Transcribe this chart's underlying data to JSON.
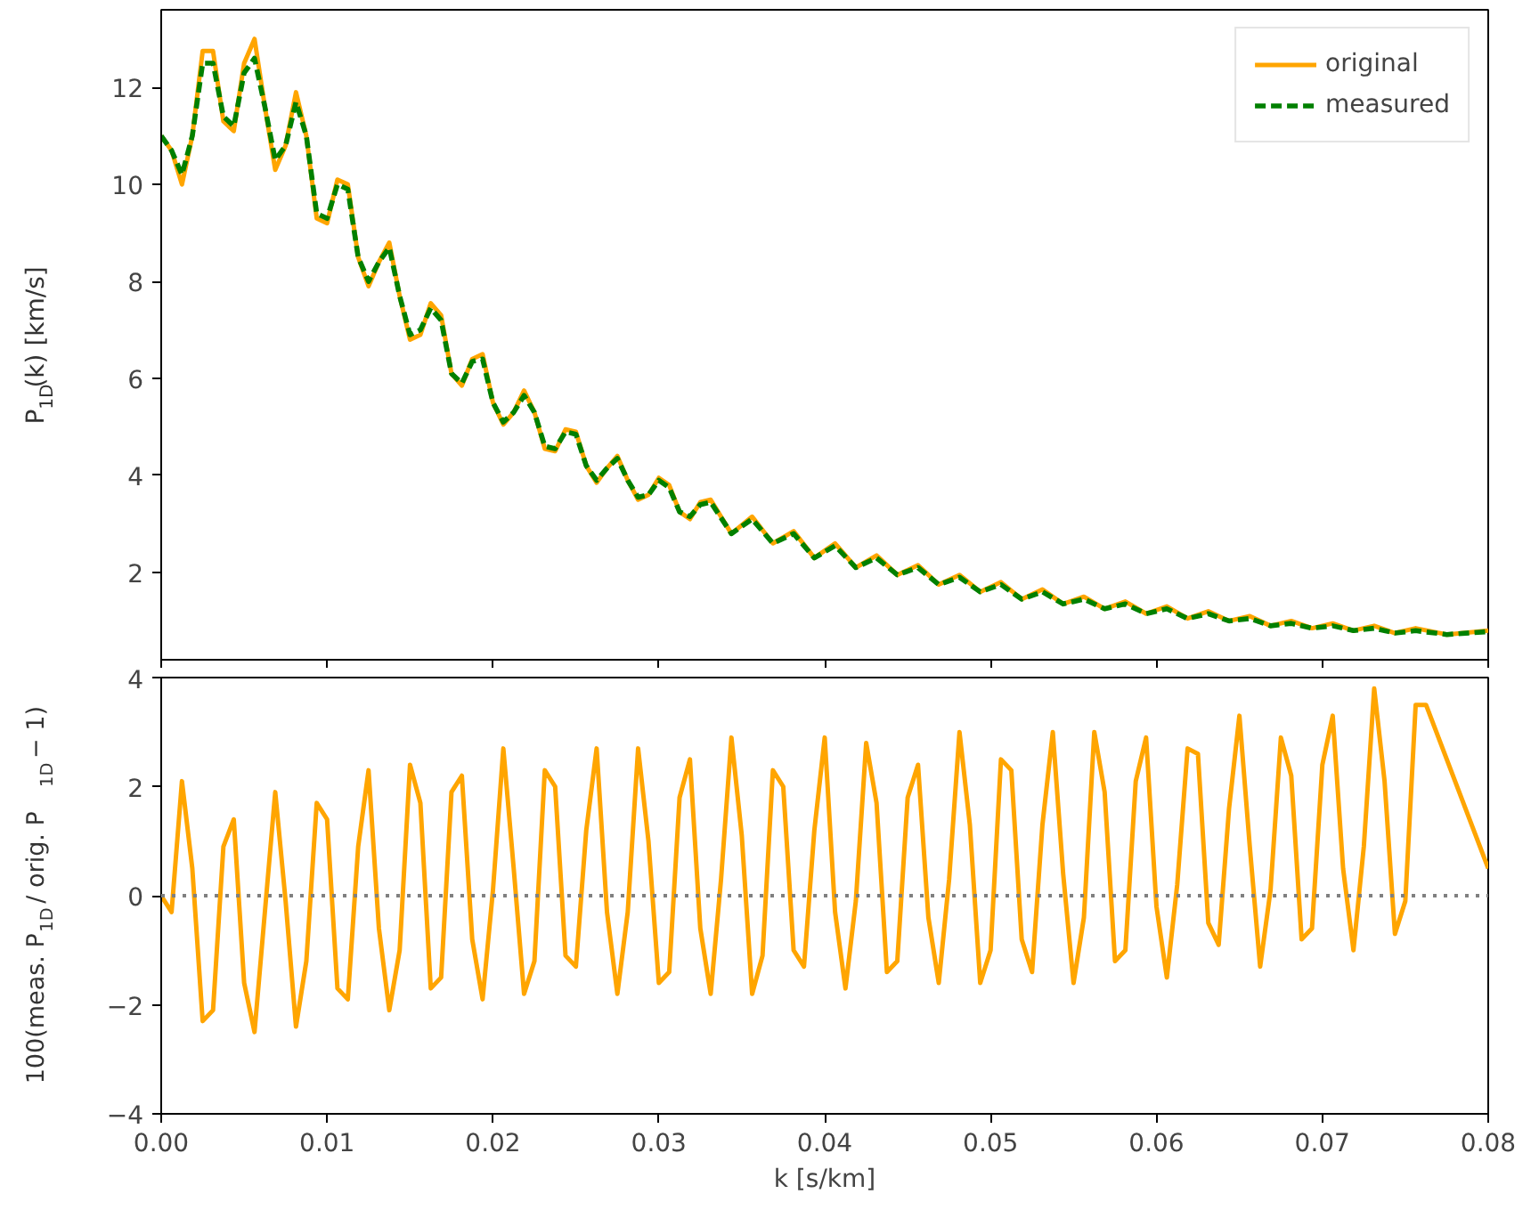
{
  "chart_data": [
    {
      "type": "line",
      "ylabel": "P$_{1D}$(k) [km/s]",
      "xlim": [
        0,
        0.08
      ],
      "ylim": [
        0.2,
        13.6
      ],
      "yticks": [
        2,
        4,
        6,
        8,
        10,
        12
      ],
      "xticks": [
        0,
        0.01,
        0.02,
        0.03,
        0.04,
        0.05,
        0.06,
        0.07,
        0.08
      ],
      "tick_labels": "y",
      "legend": "top right",
      "grid": false,
      "x": [
        0,
        0.000625,
        0.00125,
        0.001875,
        0.0025,
        0.003125,
        0.00375,
        0.004375,
        0.005,
        0.005625,
        0.00625,
        0.006875,
        0.0075,
        0.008125,
        0.00875,
        0.009375,
        0.01,
        0.010625,
        0.01125,
        0.011875,
        0.0125,
        0.013125,
        0.01375,
        0.014375,
        0.015,
        0.015625,
        0.01625,
        0.016875,
        0.0175,
        0.018125,
        0.01875,
        0.019375,
        0.02,
        0.020625,
        0.02125,
        0.021875,
        0.0225,
        0.023125,
        0.02375,
        0.024375,
        0.025,
        0.025625,
        0.02625,
        0.026875,
        0.0275,
        0.028125,
        0.02875,
        0.029375,
        0.03,
        0.030625,
        0.03125,
        0.031875,
        0.0325,
        0.033125,
        0.034375,
        0.035625,
        0.036875,
        0.038125,
        0.039375,
        0.040625,
        0.041875,
        0.043125,
        0.044375,
        0.045625,
        0.046875,
        0.048125,
        0.049375,
        0.050625,
        0.051875,
        0.053125,
        0.054375,
        0.055625,
        0.056875,
        0.058125,
        0.059375,
        0.060625,
        0.061875,
        0.063125,
        0.064375,
        0.065625,
        0.066875,
        0.068125,
        0.069375,
        0.070625,
        0.071875,
        0.073125,
        0.074375,
        0.075625,
        0.0775,
        0.08
      ],
      "series": [
        {
          "name": "original",
          "color": "#ffa500",
          "line_style": "solid",
          "values": [
            11.0,
            10.7,
            10.0,
            11.0,
            12.75,
            12.75,
            11.3,
            11.1,
            12.5,
            13.0,
            11.6,
            10.3,
            10.8,
            11.9,
            11.0,
            9.3,
            9.2,
            10.1,
            10.0,
            8.5,
            7.9,
            8.4,
            8.8,
            7.7,
            6.8,
            6.9,
            7.55,
            7.3,
            6.1,
            5.85,
            6.4,
            6.5,
            5.5,
            5.05,
            5.3,
            5.75,
            5.3,
            4.55,
            4.5,
            4.95,
            4.9,
            4.2,
            3.85,
            4.15,
            4.4,
            3.9,
            3.5,
            3.6,
            3.95,
            3.8,
            3.25,
            3.1,
            3.45,
            3.5,
            2.8,
            3.15,
            2.6,
            2.85,
            2.3,
            2.6,
            2.1,
            2.35,
            1.95,
            2.15,
            1.75,
            1.95,
            1.6,
            1.8,
            1.45,
            1.65,
            1.35,
            1.5,
            1.25,
            1.4,
            1.15,
            1.3,
            1.05,
            1.2,
            1.0,
            1.1,
            0.9,
            1.0,
            0.85,
            0.95,
            0.8,
            0.9,
            0.75,
            0.85,
            0.72,
            0.8
          ]
        },
        {
          "name": "measured",
          "color": "#008000",
          "line_style": "dashed",
          "values": [
            11.0,
            10.7,
            10.2,
            11.0,
            12.5,
            12.5,
            11.4,
            11.2,
            12.3,
            12.6,
            11.6,
            10.5,
            10.8,
            11.7,
            11.0,
            9.4,
            9.3,
            10.0,
            9.9,
            8.5,
            8.0,
            8.4,
            8.7,
            7.7,
            6.9,
            7.0,
            7.45,
            7.2,
            6.1,
            5.9,
            6.35,
            6.4,
            5.5,
            5.1,
            5.3,
            5.65,
            5.3,
            4.6,
            4.55,
            4.9,
            4.85,
            4.2,
            3.9,
            4.15,
            4.35,
            3.9,
            3.55,
            3.6,
            3.9,
            3.75,
            3.25,
            3.15,
            3.4,
            3.45,
            2.8,
            3.1,
            2.6,
            2.8,
            2.3,
            2.55,
            2.1,
            2.3,
            1.95,
            2.1,
            1.75,
            1.9,
            1.6,
            1.75,
            1.45,
            1.6,
            1.35,
            1.45,
            1.25,
            1.35,
            1.15,
            1.25,
            1.05,
            1.15,
            1.0,
            1.05,
            0.9,
            0.95,
            0.85,
            0.9,
            0.8,
            0.85,
            0.75,
            0.8,
            0.72,
            0.78
          ]
        }
      ]
    },
    {
      "type": "line",
      "xlabel": "k [s/km]",
      "ylabel": "100(meas. P$_{1D}$ / orig. P$_{1D}$ − 1)",
      "xlim": [
        0,
        0.08
      ],
      "ylim": [
        -4,
        4
      ],
      "yticks": [
        -4,
        -2,
        0,
        2,
        4
      ],
      "xticks": [
        {
          "value": 0,
          "label": "0.00"
        },
        {
          "value": 0.01,
          "label": "0.01"
        },
        {
          "value": 0.02,
          "label": "0.02"
        },
        {
          "value": 0.03,
          "label": "0.03"
        },
        {
          "value": 0.04,
          "label": "0.04"
        },
        {
          "value": 0.05,
          "label": "0.05"
        },
        {
          "value": 0.06,
          "label": "0.06"
        },
        {
          "value": 0.07,
          "label": "0.07"
        },
        {
          "value": 0.08,
          "label": "0.08"
        }
      ],
      "grid": false,
      "ref_lines": [
        {
          "axis": "y",
          "value": 0,
          "label": null,
          "color": "#808080",
          "line_style": "dotted"
        }
      ],
      "x": [
        0,
        0.000625,
        0.00125,
        0.001875,
        0.0025,
        0.003125,
        0.00375,
        0.004375,
        0.005,
        0.005625,
        0.00625,
        0.006875,
        0.0075,
        0.008125,
        0.00875,
        0.009375,
        0.01,
        0.010625,
        0.01125,
        0.011875,
        0.0125,
        0.013125,
        0.01375,
        0.014375,
        0.015,
        0.015625,
        0.01625,
        0.016875,
        0.0175,
        0.018125,
        0.01875,
        0.019375,
        0.02,
        0.020625,
        0.02125,
        0.021875,
        0.0225,
        0.023125,
        0.02375,
        0.024375,
        0.025,
        0.025625,
        0.02625,
        0.026875,
        0.0275,
        0.028125,
        0.02875,
        0.029375,
        0.03,
        0.030625,
        0.03125,
        0.031875,
        0.0325,
        0.033125,
        0.03375,
        0.034375,
        0.035,
        0.035625,
        0.03625,
        0.036875,
        0.0375,
        0.038125,
        0.03875,
        0.039375,
        0.04,
        0.040625,
        0.04125,
        0.041875,
        0.0425,
        0.043125,
        0.04375,
        0.044375,
        0.045,
        0.045625,
        0.04625,
        0.046875,
        0.0475,
        0.048125,
        0.04875,
        0.049375,
        0.05,
        0.050625,
        0.05125,
        0.051875,
        0.0525,
        0.053125,
        0.05375,
        0.054375,
        0.055,
        0.055625,
        0.05625,
        0.056875,
        0.0575,
        0.058125,
        0.05875,
        0.059375,
        0.06,
        0.060625,
        0.06125,
        0.061875,
        0.0625,
        0.063125,
        0.06375,
        0.064375,
        0.065,
        0.065625,
        0.06625,
        0.066875,
        0.0675,
        0.068125,
        0.06875,
        0.069375,
        0.07,
        0.070625,
        0.07125,
        0.071875,
        0.0725,
        0.073125,
        0.07375,
        0.074375,
        0.075,
        0.075625,
        0.07625,
        0.08
      ],
      "series": [
        {
          "color": "#ffa500",
          "line_style": "solid",
          "values": [
            0,
            -0.3,
            2.1,
            0.5,
            -2.3,
            -2.1,
            0.9,
            1.4,
            -1.6,
            -2.5,
            -0.3,
            1.9,
            -0.1,
            -2.4,
            -1.2,
            1.7,
            1.4,
            -1.7,
            -1.9,
            0.9,
            2.3,
            -0.6,
            -2.1,
            -1.0,
            2.4,
            1.7,
            -1.7,
            -1.5,
            1.9,
            2.2,
            -0.8,
            -1.9,
            0.1,
            2.7,
            0.5,
            -1.8,
            -1.2,
            2.3,
            2.0,
            -1.1,
            -1.3,
            1.2,
            2.7,
            -0.3,
            -1.8,
            -0.3,
            2.7,
            1.0,
            -1.6,
            -1.4,
            1.8,
            2.5,
            -0.6,
            -1.8,
            0.3,
            2.9,
            1.1,
            -1.8,
            -1.1,
            2.3,
            2.0,
            -1.0,
            -1.3,
            1.2,
            2.9,
            -0.3,
            -1.7,
            -0.1,
            2.8,
            1.7,
            -1.4,
            -1.2,
            1.8,
            2.4,
            -0.4,
            -1.6,
            0.3,
            3.0,
            1.3,
            -1.6,
            -1.0,
            2.5,
            2.3,
            -0.8,
            -1.4,
            1.3,
            3.0,
            0.4,
            -1.6,
            -0.4,
            3.0,
            1.9,
            -1.2,
            -1.0,
            2.1,
            2.9,
            -0.2,
            -1.5,
            0.2,
            2.7,
            2.6,
            -0.5,
            -0.9,
            1.6,
            3.3,
            0.9,
            -1.3,
            0.1,
            2.9,
            2.2,
            -0.8,
            -0.6,
            2.4,
            3.3,
            0.5,
            -1.0,
            0.9,
            3.8,
            2.1,
            -0.7,
            -0.1,
            3.5,
            3.5,
            0.5
          ]
        }
      ]
    }
  ]
}
